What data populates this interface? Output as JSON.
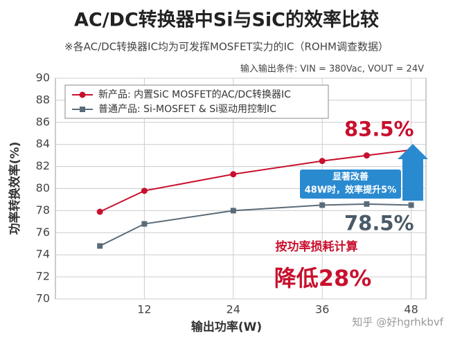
{
  "chart_data": {
    "type": "line",
    "title": "AC/DC转换器中Si与SiC的效率比较",
    "subtitle": "※各AC/DC转换器IC均为可发挥MOSFET实力的IC（ROHM调查数据）",
    "condition": "输入输出条件: VIN = 380Vac, VOUT = 24V",
    "x_label": "输出功率(W)",
    "y_label": "功率转换效率(%)",
    "x": [
      6,
      12,
      24,
      36,
      42,
      48
    ],
    "series": [
      {
        "name": "新产品: 内置SiC MOSFET的AC/DC转换器IC",
        "color": "#c8102e",
        "marker": "circle",
        "values": [
          77.9,
          79.8,
          81.3,
          82.5,
          83.0,
          83.5
        ],
        "value_labels": [
          null,
          null,
          null,
          null,
          null,
          "83.5%"
        ]
      },
      {
        "name": "普通产品: Si-MOSFET & Si驱动用控制IC",
        "color": "#5a6b78",
        "marker": "square",
        "values": [
          74.8,
          76.8,
          78.0,
          78.5,
          78.6,
          78.5
        ],
        "value_labels": [
          null,
          null,
          null,
          null,
          null,
          "78.5%"
        ]
      }
    ],
    "annotations": [
      "显著改善",
      "48W时，效率提升5%",
      "按功率损耗计算",
      "降低28%"
    ],
    "watermark": "知乎 @好hgrhkbvf",
    "xlim": [
      0,
      50
    ],
    "xticks": [
      12,
      24,
      36,
      48
    ],
    "ylim": [
      70,
      90
    ],
    "yticks": [
      70,
      72,
      74,
      76,
      78,
      80,
      82,
      84,
      86,
      88,
      90
    ],
    "grid": true,
    "legend": "upper left"
  }
}
